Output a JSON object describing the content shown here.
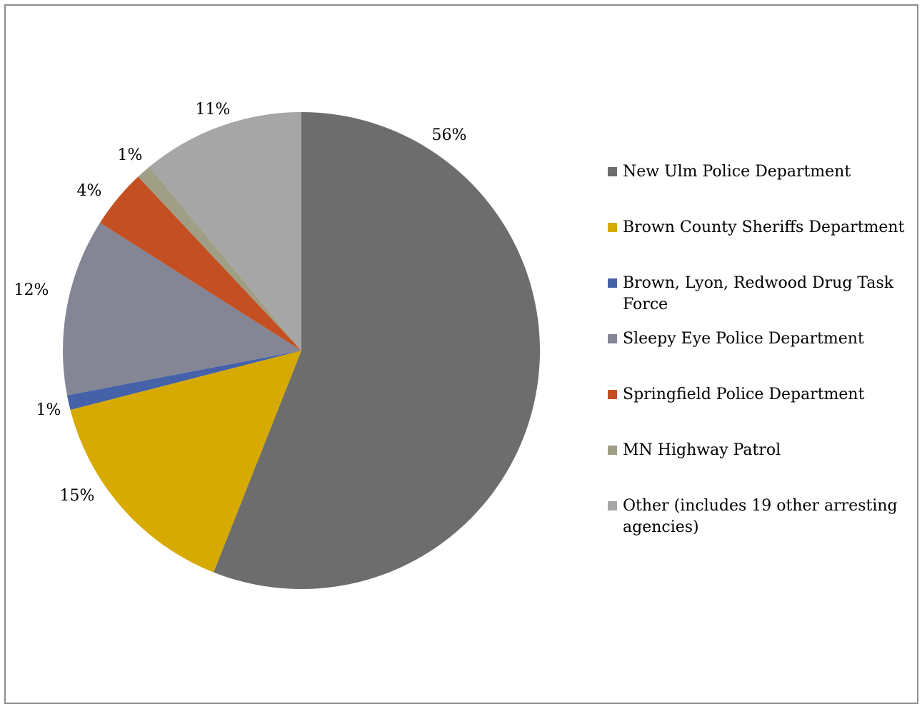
{
  "chart_data": {
    "type": "pie",
    "title": "",
    "legend_position": "right",
    "slices": [
      {
        "name": "New Ulm Police Department",
        "value": 56,
        "label": "56%",
        "color": "#6d6d6d"
      },
      {
        "name": "Brown County Sheriffs Department",
        "value": 15,
        "label": "15%",
        "color": "#d6aa00"
      },
      {
        "name": "Brown, Lyon, Redwood Drug Task Force",
        "value": 1,
        "label": "1%",
        "color": "#4562a9"
      },
      {
        "name": "Sleepy Eye Police Department",
        "value": 12,
        "label": "12%",
        "color": "#848696"
      },
      {
        "name": "Springfield Police Department",
        "value": 4,
        "label": "4%",
        "color": "#c44f22"
      },
      {
        "name": "MN Highway Patrol",
        "value": 1,
        "label": "1%",
        "color": "#a09f86"
      },
      {
        "name": "Other (includes 19 other arresting agencies)",
        "value": 11,
        "label": "11%",
        "color": "#a6a6a6"
      }
    ]
  }
}
